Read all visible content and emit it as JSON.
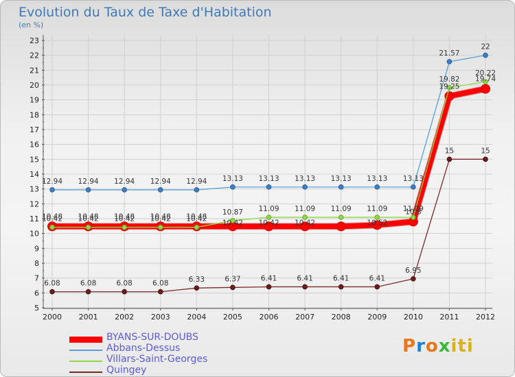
{
  "title": "Evolution du Taux de Taxe d'Habitation",
  "unit": "(en %)",
  "logo": {
    "text": "Proxiti",
    "colors": [
      "#e8761a",
      "#1f7fd0",
      "#e8761a",
      "#3db63b",
      "#d9b21a",
      "#d9b21a",
      "#d9b21a"
    ]
  },
  "chart_data": {
    "type": "line",
    "title": "Evolution du Taux de Taxe d'Habitation",
    "ylabel": "(en %)",
    "xlabel": "",
    "x": [
      "2000",
      "2001",
      "2002",
      "2003",
      "2004",
      "2005",
      "2006",
      "2007",
      "2008",
      "2009",
      "2010",
      "2011",
      "2012"
    ],
    "ylim": [
      5,
      23
    ],
    "yticks": [
      "5",
      "6",
      "7",
      "8",
      "9",
      "10",
      "11",
      "12",
      "13",
      "14",
      "15",
      "16",
      "17",
      "18",
      "19",
      "20",
      "21",
      "22",
      "23"
    ],
    "grid": true,
    "legend_position": "bottom-left",
    "series": [
      {
        "name": "BYANS-SUR-DOUBS",
        "color": "#ff0000",
        "values": [
          10.48,
          10.48,
          10.48,
          10.48,
          10.48,
          10.48,
          10.48,
          10.48,
          10.48,
          10.57,
          10.8,
          19.25,
          19.74
        ],
        "labels": [
          "10.48",
          "10.48",
          "10.48",
          "10.48",
          "10.48",
          "",
          "",
          "",
          "",
          "",
          "10.8",
          "19.25",
          "19.74"
        ]
      },
      {
        "name": "Abbans-Dessus",
        "color": "#5b9ed6",
        "values": [
          12.94,
          12.94,
          12.94,
          12.94,
          12.94,
          13.13,
          13.13,
          13.13,
          13.13,
          13.13,
          13.13,
          21.57,
          22
        ],
        "labels": [
          "12.94",
          "12.94",
          "12.94",
          "12.94",
          "12.94",
          "13.13",
          "13.13",
          "13.13",
          "13.13",
          "13.13",
          "13.13",
          "21.57",
          "22"
        ]
      },
      {
        "name": "Villars-Saint-Georges",
        "color": "#8fd84a",
        "values": [
          10.42,
          10.42,
          10.42,
          10.42,
          10.42,
          10.87,
          11.09,
          11.09,
          11.09,
          11.09,
          11.09,
          19.82,
          20.22
        ],
        "labels": [
          "10.42",
          "10.42",
          "10.42",
          "10.42",
          "10.42",
          "10.87",
          "11.09",
          "11.09",
          "11.09",
          "11.09",
          "11.09",
          "19.82",
          "20.22"
        ]
      },
      {
        "name": "Quingey",
        "color": "#7a2a2a",
        "values": [
          6.08,
          6.08,
          6.08,
          6.08,
          6.33,
          6.37,
          6.41,
          6.41,
          6.41,
          6.41,
          6.95,
          15,
          15
        ],
        "labels": [
          "6.08",
          "6.08",
          "6.08",
          "6.08",
          "6.33",
          "6.37",
          "6.41",
          "6.41",
          "6.41",
          "6.41",
          "6.95",
          "15",
          "15"
        ]
      }
    ],
    "extra_labels": [
      "10.42",
      "10.42",
      "10.42",
      "10.52"
    ]
  }
}
